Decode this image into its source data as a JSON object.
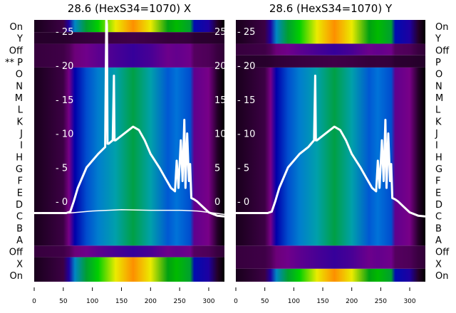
{
  "chart_data": {
    "type": "heatmap",
    "row_labels": [
      "On",
      "Y",
      "Off",
      "** P",
      "O",
      "N",
      "M",
      "L",
      "K",
      "J",
      "I",
      "H",
      "G",
      "F",
      "E",
      "D",
      "C",
      "B",
      "A",
      "Off",
      "X",
      "On"
    ],
    "right_row_labels": [
      "On",
      "Y",
      "Off",
      "P",
      "O",
      "N",
      "M",
      "L",
      "K",
      "J",
      "I",
      "H",
      "G",
      "F",
      "E",
      "D",
      "C",
      "B",
      "A",
      "Off",
      "X",
      "On"
    ],
    "xlim": [
      0,
      327
    ],
    "ylim": [
      -11.8,
      26.7
    ],
    "xticks": [
      0,
      50,
      100,
      150,
      200,
      250,
      300
    ],
    "yticks": [
      0,
      5,
      10,
      15,
      20,
      25
    ],
    "intensity_profile": {
      "x": [
        0,
        50,
        60,
        70,
        90,
        110,
        140,
        170,
        200,
        230,
        245,
        268,
        275,
        300,
        315,
        327
      ],
      "v": [
        0.02,
        0.05,
        0.1,
        0.2,
        0.27,
        0.33,
        0.4,
        0.46,
        0.4,
        0.28,
        0.31,
        0.27,
        0.12,
        0.1,
        0.03,
        0.0
      ]
    },
    "panels": [
      {
        "title": "28.6 (HexS34=1070) X",
        "bands": [
          {
            "from": 24.9,
            "to": 26.7,
            "kind": "bright"
          },
          {
            "from": 23.2,
            "to": 24.9,
            "kind": "dark"
          },
          {
            "from": 19.7,
            "to": 23.2,
            "kind": "dim"
          },
          {
            "from": -6.5,
            "to": 19.7,
            "kind": "main"
          },
          {
            "from": -8.2,
            "to": -6.5,
            "kind": "dim"
          },
          {
            "from": -11.8,
            "to": -8.2,
            "kind": "bright"
          }
        ],
        "series": [
          {
            "name": "profile",
            "width": 3,
            "x": [
              0,
              55,
              62,
              68,
              75,
              90,
              110,
              122,
              124,
              125,
              126,
              128,
              135,
              137,
              138,
              140,
              155,
              170,
              180,
              190,
              200,
              215,
              225,
              235,
              242,
              245,
              248,
              252,
              255,
              258,
              260,
              263,
              266,
              268,
              270,
              275,
              280,
              290,
              300,
              315,
              327
            ],
            "y": [
              -1.7,
              -1.7,
              -1.5,
              0,
              2,
              5,
              7,
              8,
              27,
              26,
              8.5,
              8.5,
              9,
              18.5,
              9,
              9,
              10,
              11,
              10.5,
              9,
              7,
              5,
              3.5,
              2,
              1.5,
              6,
              2,
              9,
              3,
              12,
              2,
              10,
              3,
              5.5,
              0.5,
              0.3,
              0,
              -0.8,
              -1.6,
              -2.1,
              -2.2
            ]
          },
          {
            "name": "baseline",
            "width": 1.5,
            "x": [
              0,
              60,
              100,
              150,
              200,
              250,
              280,
              300,
              327
            ],
            "y": [
              -1.7,
              -1.7,
              -1.4,
              -1.2,
              -1.3,
              -1.3,
              -1.4,
              -1.6,
              -1.9
            ]
          }
        ]
      },
      {
        "title": "28.6 (HexS34=1070) Y",
        "bands": [
          {
            "from": 23.2,
            "to": 26.7,
            "kind": "bright"
          },
          {
            "from": 21.5,
            "to": 23.2,
            "kind": "dim"
          },
          {
            "from": 19.7,
            "to": 21.5,
            "kind": "dark"
          },
          {
            "from": -6.5,
            "to": 19.7,
            "kind": "main"
          },
          {
            "from": -9.9,
            "to": -6.5,
            "kind": "dim"
          },
          {
            "from": -11.8,
            "to": -9.9,
            "kind": "bright"
          }
        ],
        "series": [
          {
            "name": "profile",
            "width": 3,
            "x": [
              0,
              55,
              62,
              68,
              75,
              90,
              110,
              125,
              128,
              130,
              135,
              137,
              138,
              140,
              155,
              170,
              180,
              190,
              200,
              215,
              225,
              235,
              242,
              245,
              248,
              252,
              255,
              258,
              260,
              263,
              266,
              268,
              270,
              275,
              280,
              290,
              300,
              315,
              327
            ],
            "y": [
              -1.7,
              -1.7,
              -1.5,
              0,
              2,
              5,
              7,
              8,
              8.3,
              8.5,
              9,
              18.5,
              9,
              9,
              10,
              11,
              10.5,
              9,
              7,
              5,
              3.5,
              2,
              1.5,
              6,
              2,
              9,
              3,
              12,
              2,
              10,
              3,
              5.5,
              0.5,
              0.3,
              0,
              -0.8,
              -1.6,
              -2.1,
              -2.2
            ]
          }
        ]
      }
    ]
  },
  "colors": {
    "line": "#ffffff"
  }
}
